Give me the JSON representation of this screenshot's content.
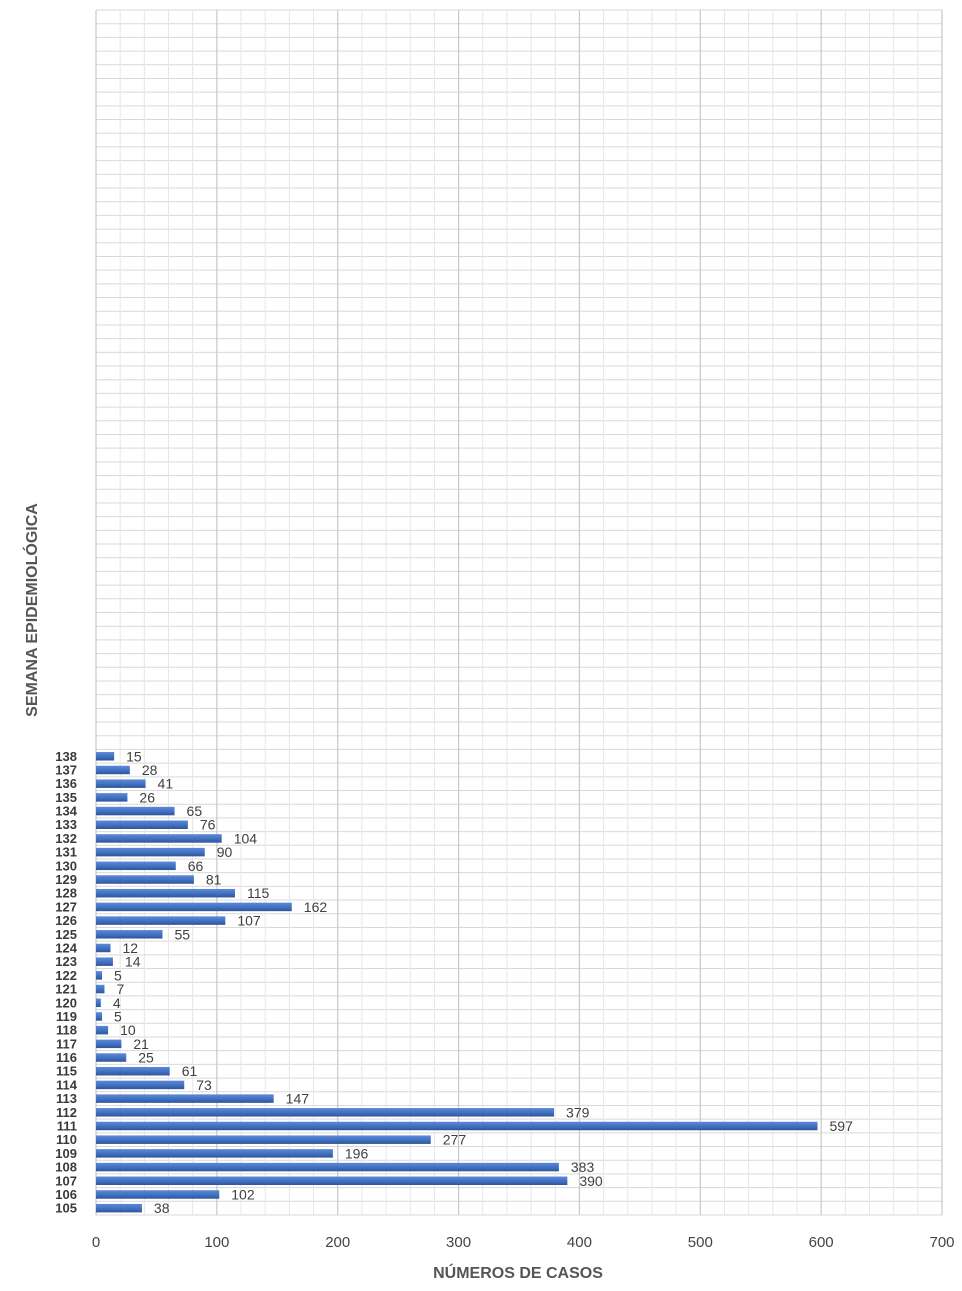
{
  "chart_data": {
    "type": "bar",
    "orientation": "horizontal",
    "categories": [
      "105",
      "106",
      "107",
      "108",
      "109",
      "110",
      "111",
      "112",
      "113",
      "114",
      "115",
      "116",
      "117",
      "118",
      "119",
      "120",
      "121",
      "122",
      "123",
      "124",
      "125",
      "126",
      "127",
      "128",
      "129",
      "130",
      "131",
      "132",
      "133",
      "134",
      "135",
      "136",
      "137",
      "138"
    ],
    "values": [
      38,
      102,
      390,
      383,
      196,
      277,
      597,
      379,
      147,
      73,
      61,
      25,
      21,
      10,
      5,
      4,
      7,
      5,
      14,
      12,
      55,
      107,
      162,
      115,
      81,
      66,
      90,
      104,
      76,
      65,
      26,
      41,
      28,
      15
    ],
    "total_category_slots": 88,
    "xlabel": "NÚMEROS DE CASOS",
    "ylabel": "SEMANA EPIDEMIOLÓGICA",
    "xlim": [
      0,
      700
    ],
    "xticks": [
      0,
      100,
      200,
      300,
      400,
      500,
      600,
      700
    ],
    "grid": true,
    "data_labels": true,
    "legend": "none",
    "bar_color": "#4472c4"
  }
}
